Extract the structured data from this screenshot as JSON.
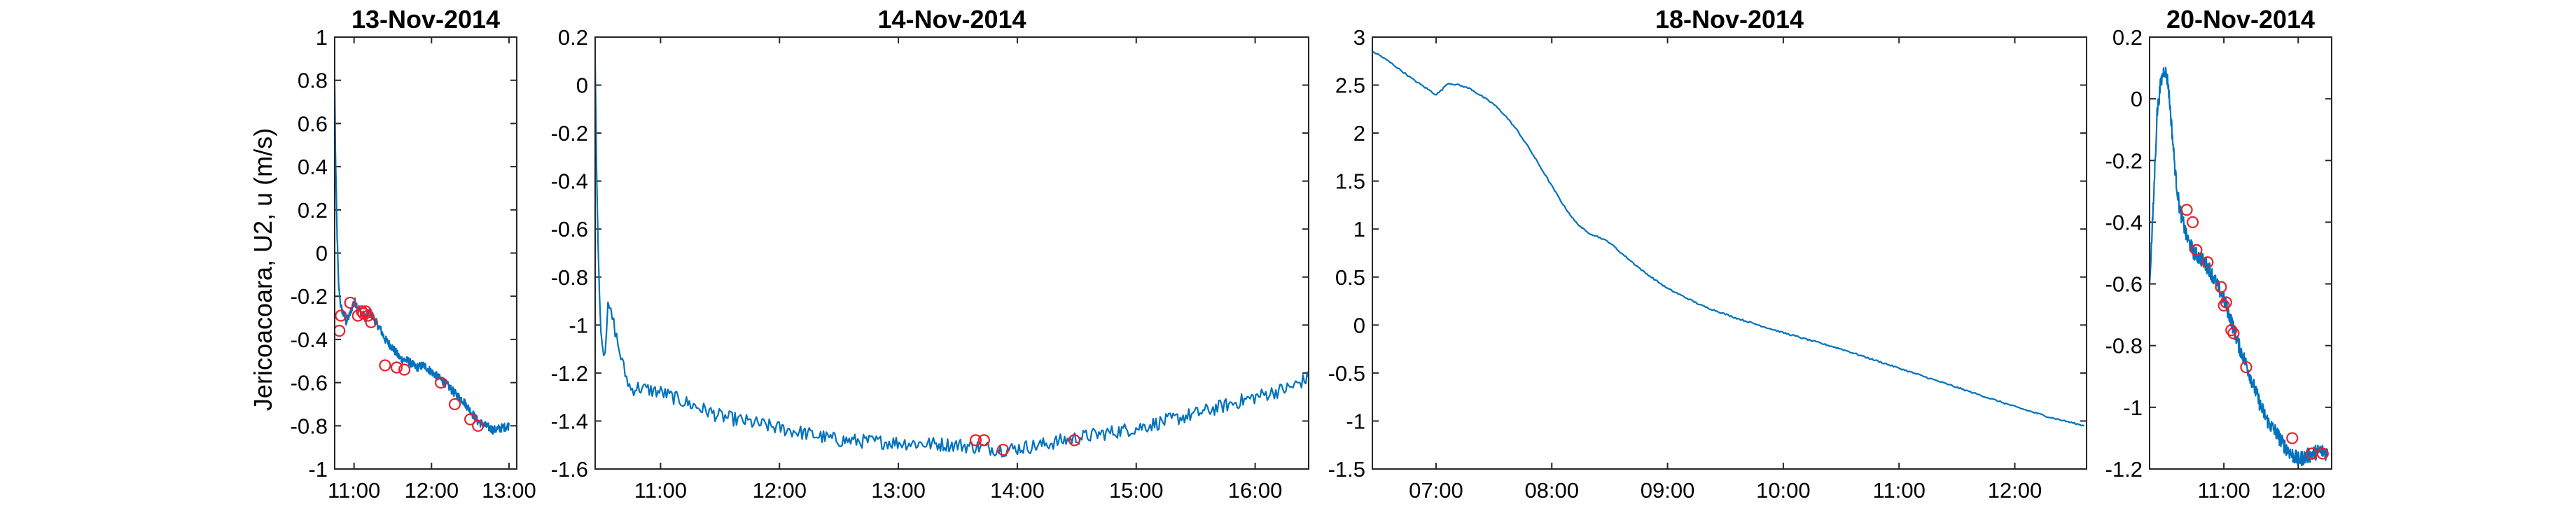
{
  "figure": {
    "ylabel": "Jericoacoara, U2, u (m/s)",
    "line_color": "#0072BD",
    "marker_color": "#E8202A"
  },
  "chart_data": [
    {
      "type": "line",
      "title": "13-Nov-2014",
      "xlabel": "",
      "ylabel": "Jericoacoara, U2, u (m/s)",
      "x_unit": "hours",
      "xlim": [
        10.75,
        13.1
      ],
      "ylim": [
        -1,
        1
      ],
      "yticks": [
        "-1",
        "-0.8",
        "-0.6",
        "-0.4",
        "-0.2",
        "0",
        "0.2",
        "0.4",
        "0.6",
        "0.8",
        "1"
      ],
      "xticks": [
        {
          "v": 11,
          "label": "11:00"
        },
        {
          "v": 12,
          "label": "12:00"
        },
        {
          "v": 13,
          "label": "13:00"
        }
      ],
      "series": [
        {
          "kind": "line",
          "x": [
            10.75,
            10.76,
            10.78,
            10.8,
            10.83,
            10.86,
            10.9,
            10.95,
            11.0,
            11.05,
            11.1,
            11.15,
            11.2,
            11.25,
            11.3,
            11.35,
            11.4,
            11.5,
            11.6,
            11.7,
            11.8,
            11.9,
            12.0,
            12.1,
            12.2,
            12.3,
            12.4,
            12.5,
            12.6,
            12.7,
            12.8,
            12.9,
            13.0
          ],
          "y": [
            0.78,
            0.45,
            0.1,
            -0.15,
            -0.25,
            -0.28,
            -0.32,
            -0.28,
            -0.22,
            -0.25,
            -0.28,
            -0.3,
            -0.27,
            -0.3,
            -0.33,
            -0.36,
            -0.4,
            -0.44,
            -0.49,
            -0.5,
            -0.53,
            -0.52,
            -0.55,
            -0.58,
            -0.61,
            -0.65,
            -0.68,
            -0.73,
            -0.78,
            -0.8,
            -0.82,
            -0.81,
            -0.8
          ],
          "noise": 0.02
        },
        {
          "kind": "markers",
          "x": [
            10.81,
            10.83,
            10.95,
            11.05,
            11.1,
            11.12,
            11.15,
            11.18,
            11.22,
            11.4,
            11.55,
            11.65,
            12.12,
            12.3,
            12.5,
            12.6
          ],
          "y": [
            -0.36,
            -0.29,
            -0.23,
            -0.29,
            -0.27,
            -0.28,
            -0.27,
            -0.29,
            -0.32,
            -0.52,
            -0.53,
            -0.54,
            -0.6,
            -0.7,
            -0.77,
            -0.8
          ]
        }
      ]
    },
    {
      "type": "line",
      "title": "14-Nov-2014",
      "xlabel": "",
      "ylabel": "",
      "x_unit": "hours",
      "xlim": [
        10.45,
        16.45
      ],
      "ylim": [
        -1.6,
        0.2
      ],
      "yticks": [
        "-1.6",
        "-1.4",
        "-1.2",
        "-1",
        "-0.8",
        "-0.6",
        "-0.4",
        "-0.2",
        "0",
        "0.2"
      ],
      "xticks": [
        {
          "v": 11,
          "label": "11:00"
        },
        {
          "v": 12,
          "label": "12:00"
        },
        {
          "v": 13,
          "label": "13:00"
        },
        {
          "v": 14,
          "label": "14:00"
        },
        {
          "v": 15,
          "label": "15:00"
        },
        {
          "v": 16,
          "label": "16:00"
        }
      ],
      "series": [
        {
          "kind": "line",
          "x": [
            10.45,
            10.47,
            10.5,
            10.53,
            10.56,
            10.6,
            10.65,
            10.7,
            10.75,
            10.8,
            10.9,
            11.0,
            11.2,
            11.5,
            12.0,
            12.5,
            13.0,
            13.5,
            13.9,
            14.2,
            14.5,
            15.0,
            15.5,
            16.0,
            16.3,
            16.45
          ],
          "y": [
            0.1,
            -0.6,
            -1.05,
            -1.12,
            -0.92,
            -0.98,
            -1.1,
            -1.2,
            -1.27,
            -1.26,
            -1.27,
            -1.28,
            -1.32,
            -1.38,
            -1.43,
            -1.48,
            -1.49,
            -1.5,
            -1.52,
            -1.5,
            -1.47,
            -1.43,
            -1.37,
            -1.3,
            -1.26,
            -1.22
          ],
          "noise": 0.03
        },
        {
          "kind": "markers",
          "x": [
            13.65,
            13.72,
            13.88,
            14.48
          ],
          "y": [
            -1.48,
            -1.48,
            -1.52,
            -1.48
          ]
        }
      ]
    },
    {
      "type": "line",
      "title": "18-Nov-2014",
      "xlabel": "",
      "ylabel": "",
      "x_unit": "hours",
      "xlim": [
        6.45,
        12.62
      ],
      "ylim": [
        -1.5,
        3
      ],
      "yticks": [
        "-1.5",
        "-1",
        "-0.5",
        "0",
        "0.5",
        "1",
        "1.5",
        "2",
        "2.5",
        "3"
      ],
      "xticks": [
        {
          "v": 7,
          "label": "07:00"
        },
        {
          "v": 8,
          "label": "08:00"
        },
        {
          "v": 9,
          "label": "09:00"
        },
        {
          "v": 10,
          "label": "10:00"
        },
        {
          "v": 11,
          "label": "11:00"
        },
        {
          "v": 12,
          "label": "12:00"
        }
      ],
      "series": [
        {
          "kind": "line",
          "x": [
            6.45,
            6.5,
            6.6,
            6.7,
            6.8,
            6.9,
            7.0,
            7.05,
            7.1,
            7.2,
            7.3,
            7.4,
            7.5,
            7.6,
            7.7,
            7.8,
            7.9,
            8.0,
            8.1,
            8.2,
            8.3,
            8.4,
            8.5,
            8.6,
            8.8,
            9.0,
            9.3,
            9.6,
            10.0,
            10.5,
            11.0,
            11.5,
            12.0,
            12.3,
            12.6
          ],
          "y": [
            2.85,
            2.82,
            2.74,
            2.65,
            2.56,
            2.48,
            2.4,
            2.45,
            2.52,
            2.5,
            2.46,
            2.38,
            2.3,
            2.18,
            2.03,
            1.85,
            1.65,
            1.45,
            1.25,
            1.08,
            0.97,
            0.92,
            0.86,
            0.75,
            0.55,
            0.38,
            0.2,
            0.07,
            -0.08,
            -0.25,
            -0.45,
            -0.65,
            -0.85,
            -0.96,
            -1.05
          ],
          "noise": 0.008
        }
      ]
    },
    {
      "type": "line",
      "title": "20-Nov-2014",
      "xlabel": "",
      "ylabel": "",
      "x_unit": "hours",
      "xlim": [
        10.0,
        12.45
      ],
      "ylim": [
        -1.2,
        0.2
      ],
      "yticks": [
        "-1.2",
        "-1",
        "-0.8",
        "-0.6",
        "-0.4",
        "-0.2",
        "0",
        "0.2"
      ],
      "xticks": [
        {
          "v": 11,
          "label": "11:00"
        },
        {
          "v": 12,
          "label": "12:00"
        }
      ],
      "series": [
        {
          "kind": "line",
          "x": [
            10.0,
            10.05,
            10.1,
            10.15,
            10.2,
            10.25,
            10.3,
            10.35,
            10.4,
            10.45,
            10.5,
            10.6,
            10.7,
            10.8,
            10.9,
            11.0,
            11.1,
            11.2,
            11.3,
            11.4,
            11.5,
            11.6,
            11.7,
            11.8,
            11.9,
            12.0,
            12.1,
            12.2,
            12.3,
            12.4
          ],
          "y": [
            -0.6,
            -0.35,
            -0.05,
            0.05,
            0.1,
            0.05,
            -0.1,
            -0.25,
            -0.35,
            -0.4,
            -0.45,
            -0.5,
            -0.52,
            -0.55,
            -0.6,
            -0.65,
            -0.72,
            -0.8,
            -0.86,
            -0.93,
            -1.0,
            -1.05,
            -1.08,
            -1.12,
            -1.15,
            -1.17,
            -1.16,
            -1.15,
            -1.14,
            -1.15
          ],
          "noise": 0.025
        },
        {
          "kind": "markers",
          "x": [
            10.5,
            10.58,
            10.63,
            10.78,
            10.96,
            11.0,
            11.03,
            11.1,
            11.13,
            11.3,
            11.92,
            12.18,
            12.33
          ],
          "y": [
            -0.36,
            -0.4,
            -0.49,
            -0.53,
            -0.61,
            -0.67,
            -0.66,
            -0.75,
            -0.76,
            -0.87,
            -1.1,
            -1.15,
            -1.15
          ]
        }
      ]
    }
  ]
}
